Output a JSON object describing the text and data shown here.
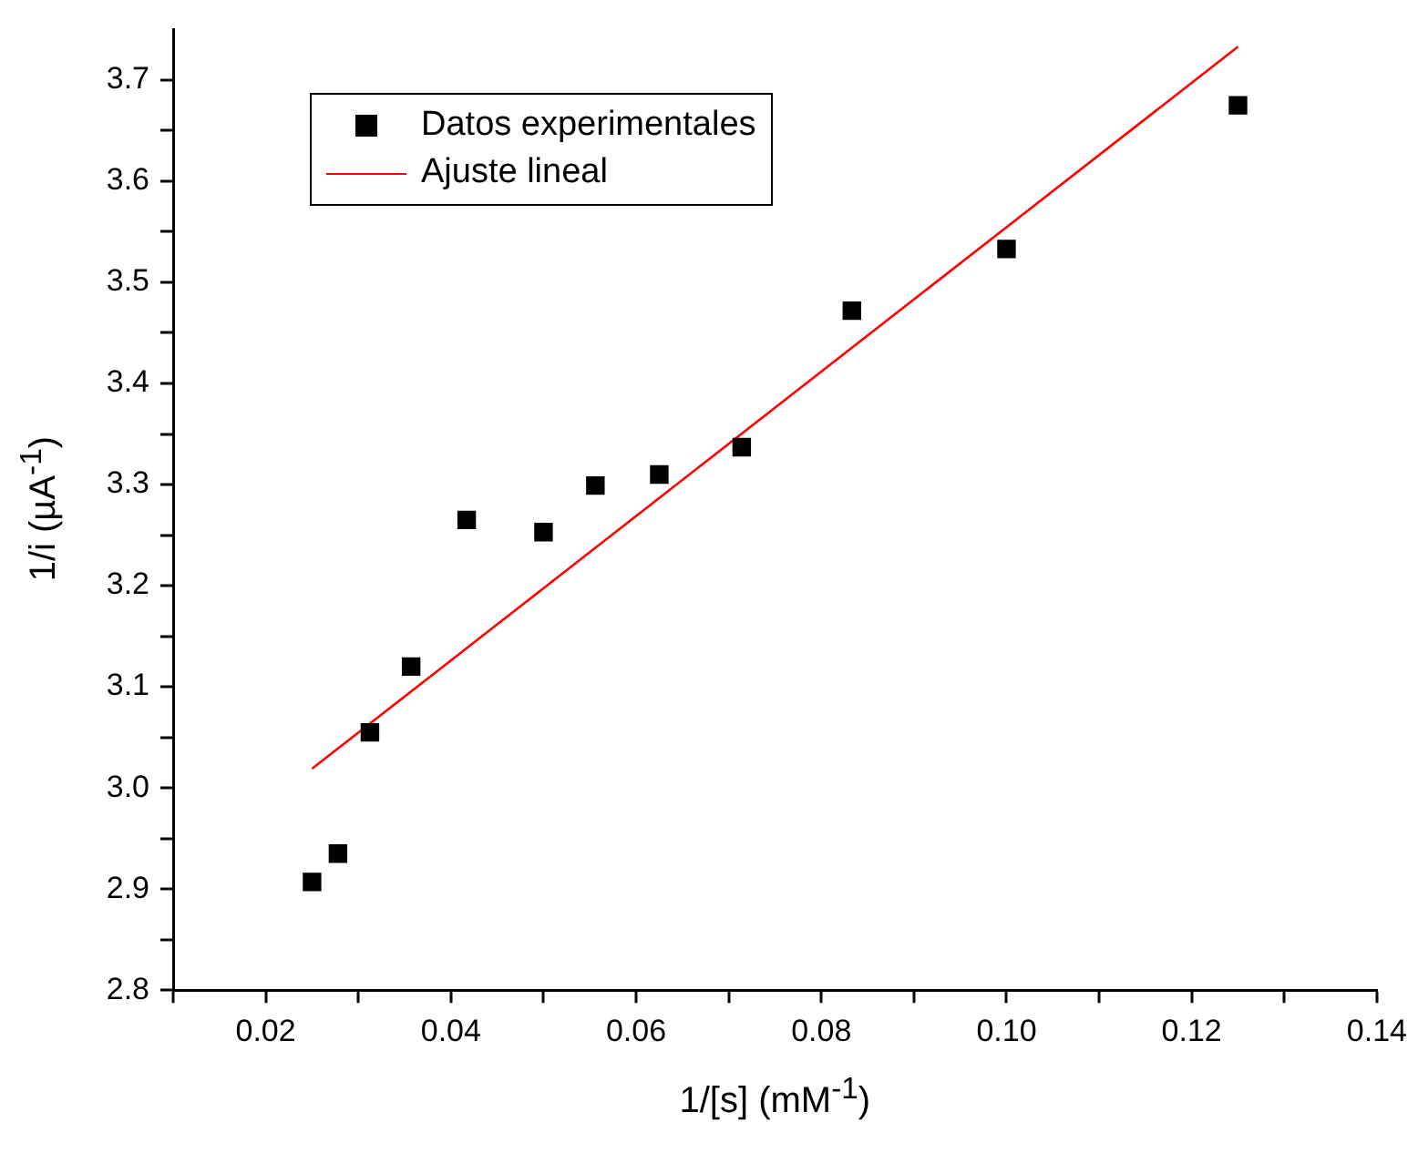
{
  "chart_data": {
    "type": "scatter",
    "xlabel": "1/[s] (mM$^{-1}$)",
    "ylabel": "1/i (µA$^{-1}$)",
    "xlim": [
      0.01,
      0.14
    ],
    "ylim": [
      2.8,
      3.75
    ],
    "xticks": [
      {
        "value": 0.01,
        "label": null
      },
      0.02,
      {
        "value": 0.03,
        "label": null
      },
      0.04,
      {
        "value": 0.05,
        "label": null
      },
      0.06,
      {
        "value": 0.07,
        "label": null
      },
      0.08,
      {
        "value": 0.09,
        "label": null
      },
      {
        "value": 0.1,
        "label": "0.10"
      },
      {
        "value": 0.11,
        "label": null
      },
      0.12,
      {
        "value": 0.13,
        "label": null
      },
      0.14
    ],
    "yticks": [
      2.8,
      {
        "value": 2.85,
        "label": null
      },
      2.9,
      {
        "value": 2.95,
        "label": null
      },
      {
        "value": 3.0,
        "label": "3.0"
      },
      {
        "value": 3.05,
        "label": null
      },
      3.1,
      {
        "value": 3.15,
        "label": null
      },
      3.2,
      {
        "value": 3.25,
        "label": null
      },
      3.3,
      {
        "value": 3.35,
        "label": null
      },
      3.4,
      {
        "value": 3.45,
        "label": null
      },
      3.5,
      {
        "value": 3.55,
        "label": null
      },
      3.6,
      {
        "value": 3.65,
        "label": null
      },
      3.7
    ],
    "grid": false,
    "legend": "top left",
    "series": [
      {
        "name": "Datos experimentales",
        "color": "#000000",
        "marker": "square",
        "x": [
          0.025,
          0.0278,
          0.03125,
          0.0357,
          0.0417,
          0.05,
          0.0556,
          0.0625,
          0.0714,
          0.0833,
          0.1,
          0.125
        ],
        "values": [
          2.907,
          2.935,
          3.055,
          3.12,
          3.265,
          3.253,
          3.299,
          3.31,
          3.337,
          3.472,
          3.533,
          3.675
        ]
      },
      {
        "name": "Ajuste lineal",
        "type": "line",
        "color": "#ff0000",
        "marker": "none",
        "line_style": "solid",
        "x": [
          0.025,
          0.125
        ],
        "values": [
          3.019,
          3.733
        ]
      }
    ]
  }
}
